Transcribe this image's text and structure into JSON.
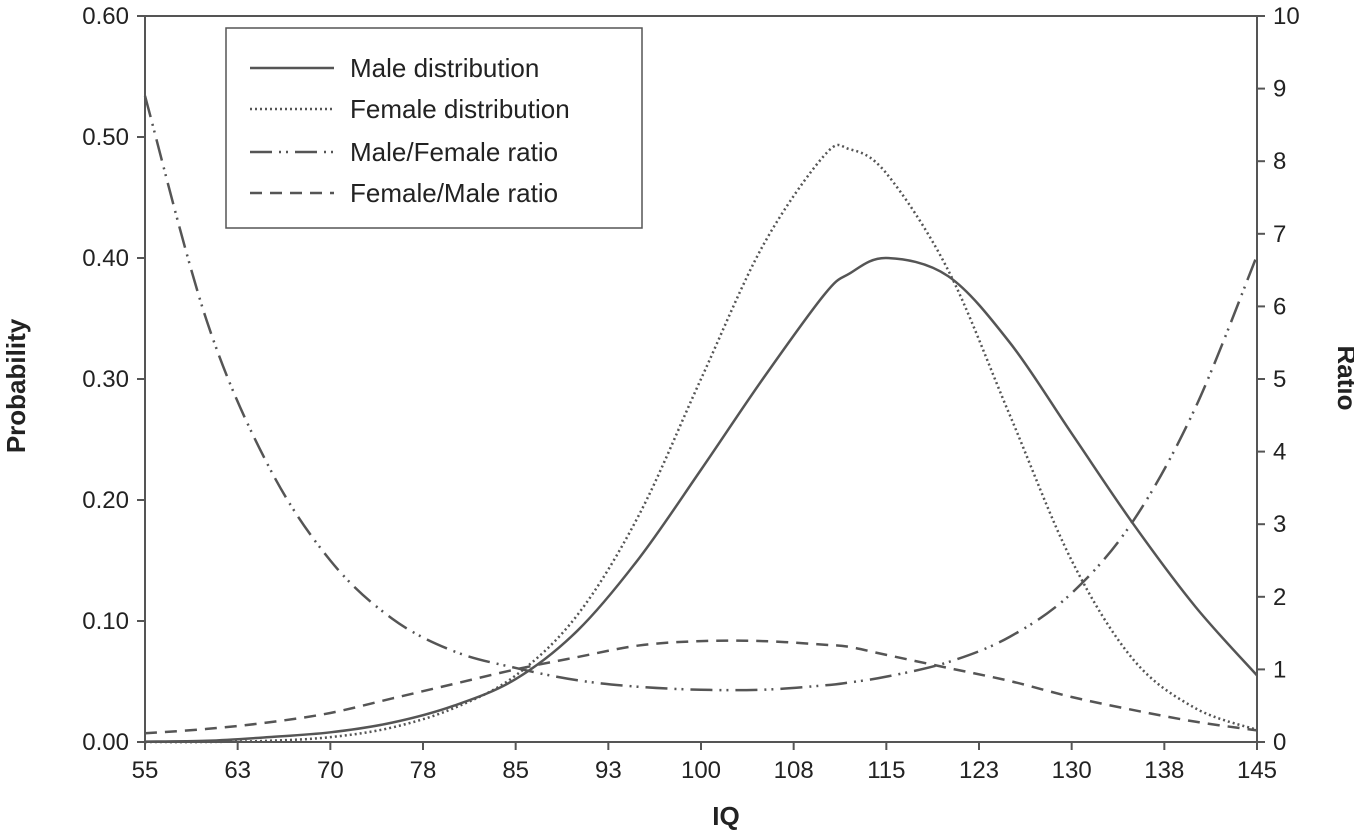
{
  "chart_data": {
    "type": "line",
    "title": "",
    "xlabel": "IQ",
    "ylabel": "Probability",
    "y2label": "Ratio",
    "xlim": [
      55,
      145
    ],
    "ylim": [
      0,
      0.6
    ],
    "y2lim": [
      0,
      10
    ],
    "x_tick_labels": [
      "55",
      "63",
      "70",
      "78",
      "85",
      "93",
      "100",
      "108",
      "115",
      "123",
      "130",
      "138",
      "145"
    ],
    "y_tick_labels": [
      "0.00",
      "0.10",
      "0.20",
      "0.30",
      "0.40",
      "0.50",
      "0.60"
    ],
    "y2_tick_labels": [
      "0",
      "1",
      "2",
      "3",
      "4",
      "5",
      "6",
      "7",
      "8",
      "9",
      "10"
    ],
    "legend_position": "top-left",
    "x": [
      55,
      60,
      65,
      70,
      75,
      80,
      85,
      90,
      95,
      100,
      105,
      110,
      112,
      115,
      120,
      125,
      130,
      135,
      140,
      145
    ],
    "series": [
      {
        "name": "Male distribution",
        "axis": "left",
        "style": "solid",
        "values": [
          0.0003,
          0.001,
          0.004,
          0.008,
          0.016,
          0.03,
          0.052,
          0.092,
          0.152,
          0.225,
          0.3,
          0.37,
          0.387,
          0.4,
          0.385,
          0.33,
          0.255,
          0.18,
          0.112,
          0.055
        ]
      },
      {
        "name": "Female distribution",
        "axis": "left",
        "style": "dotted",
        "values": [
          0.0,
          0.0,
          0.001,
          0.004,
          0.012,
          0.028,
          0.055,
          0.105,
          0.188,
          0.3,
          0.41,
          0.485,
          0.49,
          0.47,
          0.39,
          0.27,
          0.15,
          0.068,
          0.028,
          0.01
        ]
      },
      {
        "name": "Male/Female ratio",
        "axis": "right",
        "style": "dash-dot-dot",
        "values": [
          8.9,
          5.8,
          3.8,
          2.5,
          1.7,
          1.25,
          1.02,
          0.85,
          0.76,
          0.72,
          0.72,
          0.78,
          0.82,
          0.9,
          1.1,
          1.45,
          2.05,
          3.05,
          4.6,
          6.7
        ]
      },
      {
        "name": "Female/Male ratio",
        "axis": "right",
        "style": "dashed",
        "values": [
          0.12,
          0.18,
          0.27,
          0.4,
          0.6,
          0.8,
          1.0,
          1.17,
          1.33,
          1.39,
          1.39,
          1.34,
          1.31,
          1.2,
          1.02,
          0.84,
          0.62,
          0.44,
          0.28,
          0.16
        ]
      }
    ]
  }
}
